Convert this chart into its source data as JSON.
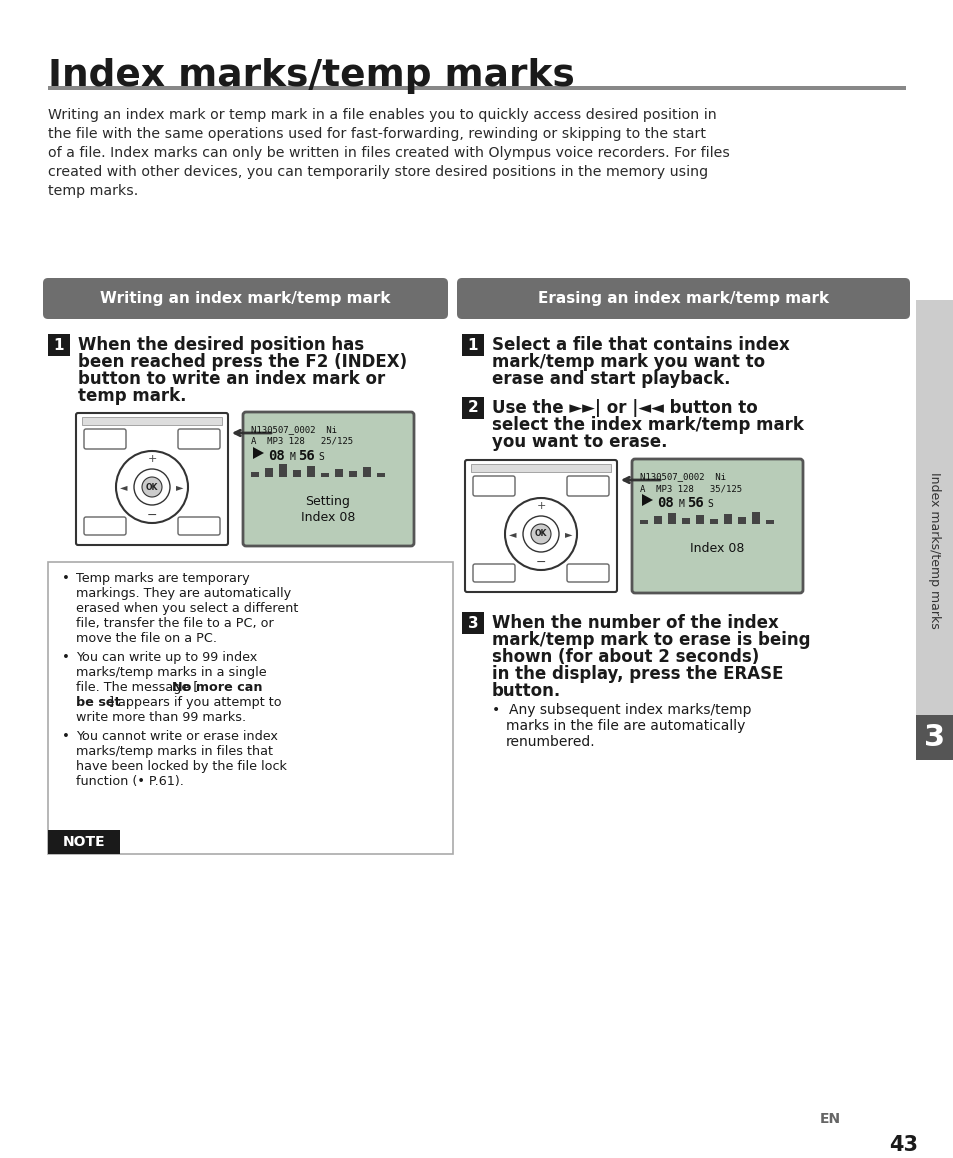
{
  "title": "Index marks/temp marks",
  "bg_color": "#ffffff",
  "separator_color": "#888888",
  "title_color": "#1a1a1a",
  "section_header_bg": "#6e6e6e",
  "section_header_color": "#ffffff",
  "section1_header": "Writing an index mark/temp mark",
  "section2_header": "Erasing an index mark/temp mark",
  "intro_lines": [
    "Writing an index mark or temp mark in a file enables you to quickly access desired position in",
    "the file with the same operations used for fast-forwarding, rewinding or skipping to the start",
    "of a file. Index marks can only be written in files created with Olympus voice recorders. For files",
    "created with other devices, you can temporarily store desired positions in the memory using",
    "temp marks."
  ],
  "left_step1_lines": [
    "When the desired position has",
    "been reached press the F2 (INDEX)",
    "button to write an index mark or",
    "temp mark."
  ],
  "right_step1_lines": [
    "Select a file that contains index",
    "mark/temp mark you want to",
    "erase and start playback."
  ],
  "right_step2_lines": [
    "Use the ►►| or |◄◄ button to",
    "select the index mark/temp mark",
    "you want to erase."
  ],
  "right_step3_lines": [
    "When the number of the index",
    "mark/temp mark to erase is being",
    "shown (for about 2 seconds)",
    "in the display, press the ERASE",
    "button."
  ],
  "right_step3_bullet_lines": [
    "Any subsequent index marks/temp",
    "marks in the file are automatically",
    "renumbered."
  ],
  "note_header": "NOTE",
  "note_b1_lines": [
    "Temp marks are temporary",
    "markings. They are automatically",
    "erased when you select a different",
    "file, transfer the file to a PC, or",
    "move the file on a PC."
  ],
  "note_b2_lines_plain": [
    "You can write up to 99 index",
    "marks/temp marks in a single"
  ],
  "note_b2_line3_pre": "file. The message [",
  "note_b2_line3_bold": "No more can",
  "note_b2_line4_bold": "be set",
  "note_b2_line4_post": "] appears if you attempt to",
  "note_b2_line5": "write more than 99 marks.",
  "note_b3_lines": [
    "You cannot write or erase index",
    "marks/temp marks in files that",
    "have been locked by the file lock",
    "function (• P.61)."
  ],
  "page_num": "43",
  "chapter_num": "3",
  "sidebar_text": "Index marks/temp marks",
  "en_label": "EN",
  "step_bg": "#1a1a1a",
  "step_fg": "#ffffff",
  "note_header_bg": "#1a1a1a",
  "note_header_fg": "#ffffff",
  "lcd_bg": "#b8ccb8",
  "lcd_fg": "#111111",
  "sidebar_bg": "#cccccc",
  "sidebar_dark_bg": "#555555",
  "waveform_heights_left": [
    5,
    9,
    13,
    7,
    11,
    4,
    8,
    6,
    10,
    4
  ],
  "waveform_heights_right": [
    4,
    8,
    11,
    6,
    9,
    5,
    10,
    7,
    12,
    4
  ]
}
